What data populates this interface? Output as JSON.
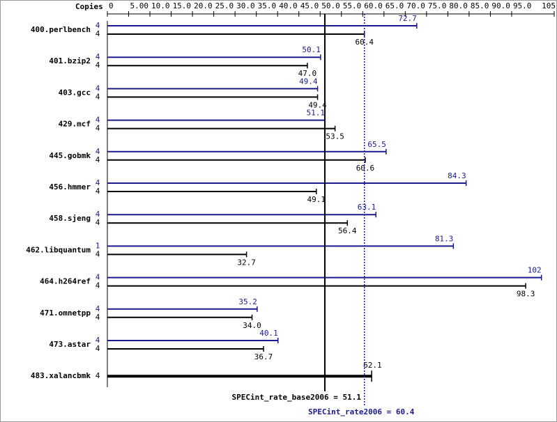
{
  "chart_data": {
    "type": "spec-bar",
    "copies_label": "Copies",
    "xlim": [
      0,
      105
    ],
    "xticks": [
      0,
      {
        "value": 5,
        "label": "5.00"
      },
      {
        "value": 10,
        "label": "10.0"
      },
      {
        "value": 15,
        "label": "15.0"
      },
      {
        "value": 20,
        "label": "20.0"
      },
      {
        "value": 25,
        "label": "25.0"
      },
      {
        "value": 30,
        "label": "30.0"
      },
      {
        "value": 35,
        "label": "35.0"
      },
      {
        "value": 40,
        "label": "40.0"
      },
      {
        "value": 45,
        "label": "45.0"
      },
      {
        "value": 50,
        "label": "50.0"
      },
      {
        "value": 55,
        "label": "55.0"
      },
      {
        "value": 60,
        "label": "60.0"
      },
      {
        "value": 65,
        "label": "65.0"
      },
      {
        "value": 70,
        "label": "70.0"
      },
      {
        "value": 75,
        "label": "75.0"
      },
      {
        "value": 80,
        "label": "80.0"
      },
      {
        "value": 85,
        "label": "85.0"
      },
      {
        "value": 90,
        "label": "90.0"
      },
      {
        "value": 95,
        "label": "95.0"
      },
      105
    ],
    "categories": [
      "400.perlbench",
      "401.bzip2",
      "403.gcc",
      "429.mcf",
      "445.gobmk",
      "456.hmmer",
      "458.sjeng",
      "462.libquantum",
      "464.h264ref",
      "471.omnetpp",
      "473.astar",
      "483.xalancbmk"
    ],
    "series": [
      {
        "color": "#1a1a8c",
        "copies": [
          4,
          4,
          4,
          4,
          4,
          4,
          4,
          1,
          4,
          4,
          4,
          null
        ],
        "values": [
          72.7,
          50.1,
          49.4,
          51.1,
          65.5,
          84.3,
          63.1,
          81.3,
          102,
          35.2,
          40.1,
          null
        ]
      },
      {
        "color": "#000000",
        "copies": [
          4,
          4,
          4,
          4,
          4,
          4,
          4,
          4,
          4,
          4,
          4,
          4
        ],
        "values": [
          60.4,
          47.0,
          49.4,
          53.5,
          60.6,
          49.1,
          56.4,
          32.7,
          98.3,
          34.0,
          36.7,
          62.1
        ],
        "value_labels": [
          "60.4",
          "47.0",
          "49.4",
          "53.5",
          "60.6",
          "49.1",
          "56.4",
          "32.7",
          "98.3",
          "34.0",
          "36.7",
          "62.1"
        ]
      }
    ],
    "base_summary": {
      "label": "SPECint_rate_base2006 =",
      "value": 51.1
    },
    "peak_summary": {
      "label": "SPECint_rate2006 =",
      "value": 60.4
    }
  }
}
